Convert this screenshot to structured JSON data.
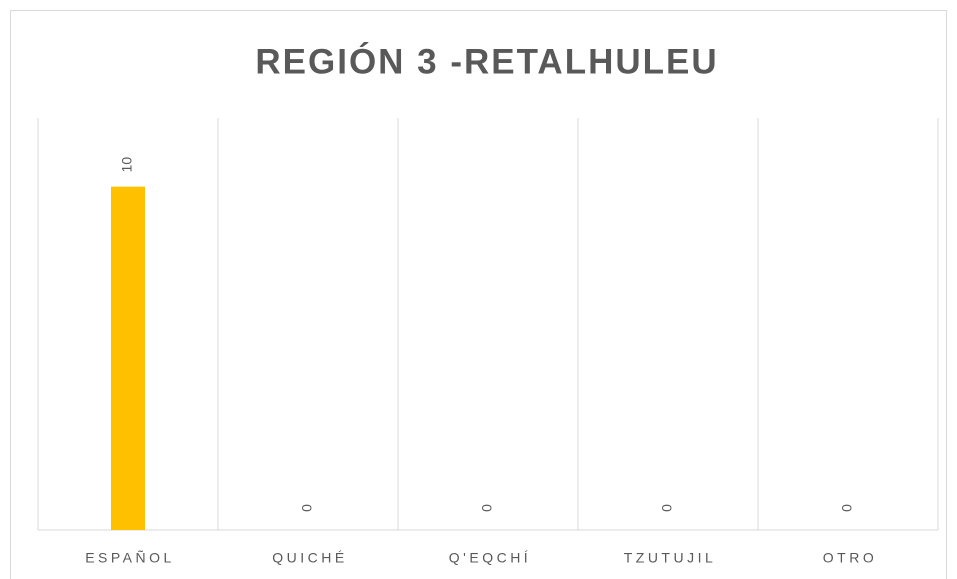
{
  "chart_data": {
    "type": "bar",
    "title": "REGIÓN 3 -RETALHULEU",
    "categories": [
      "ESPAÑOL",
      "QUICHÉ",
      "Q'EQCHÍ",
      "TZUTUJIL",
      "OTRO"
    ],
    "values": [
      10,
      0,
      0,
      0,
      0
    ],
    "color": "#ffc000",
    "ylim": [
      0,
      12
    ],
    "grid": "category"
  }
}
